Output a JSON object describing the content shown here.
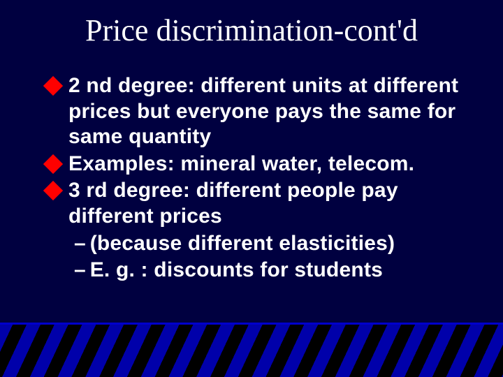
{
  "colors": {
    "background": "#000040",
    "title_color": "#ffffff",
    "body_color": "#ffffff",
    "bullet_marker": "#ff0000",
    "stripe_a": "#0000aa",
    "stripe_b": "#000000"
  },
  "typography": {
    "title_font": "Times New Roman",
    "title_size_pt": 33,
    "title_weight": 400,
    "body_font": "Arial",
    "body_size_pt": 22,
    "body_weight": 700
  },
  "title": "Price discrimination-cont'd",
  "bullets": [
    {
      "level": 1,
      "text": "2 nd degree: different units at different prices but everyone pays the same for same quantity"
    },
    {
      "level": 1,
      "text": "Examples: mineral water, telecom."
    },
    {
      "level": 1,
      "text": "3 rd degree: different people pay different prices"
    },
    {
      "level": 2,
      "text": "(because different elasticities)"
    },
    {
      "level": 2,
      "text": "E. g. : discounts for students"
    }
  ]
}
